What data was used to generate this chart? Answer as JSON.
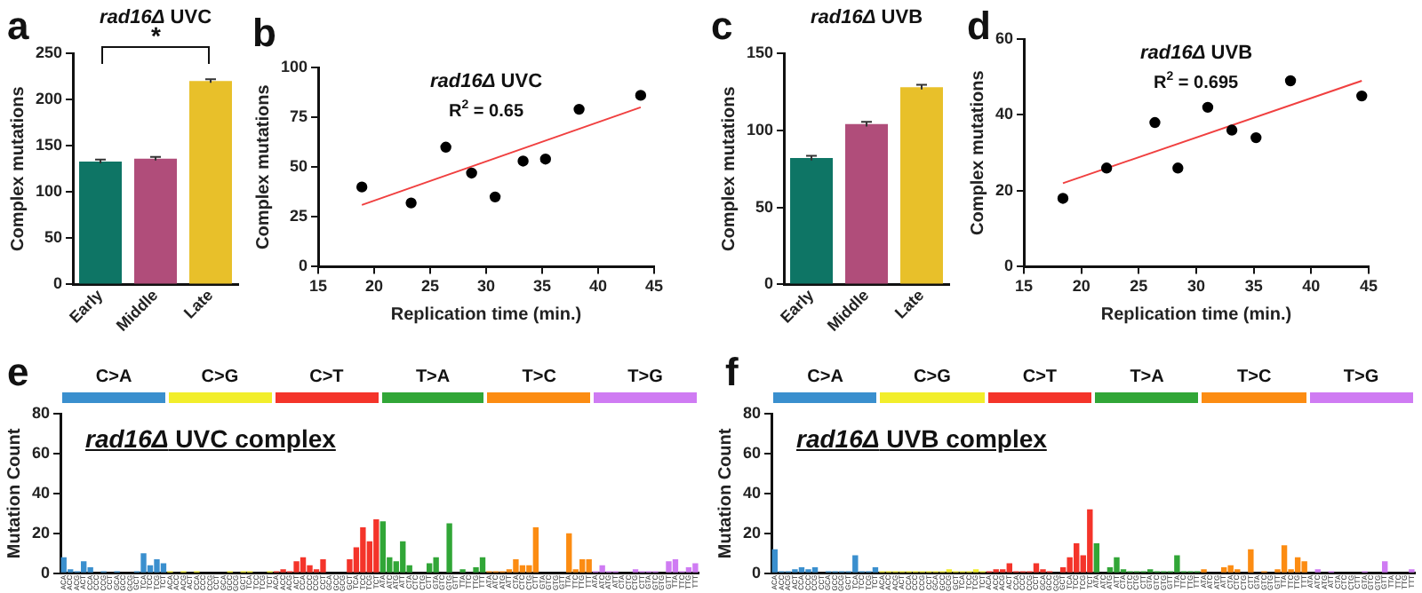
{
  "chart_data": [
    {
      "type": "bar",
      "title": "rad16Δ UVC",
      "ylabel": "Complex mutations",
      "categories": [
        "Early",
        "Middle",
        "Late"
      ],
      "values": [
        133,
        136,
        220
      ],
      "errors": [
        2,
        2,
        2
      ],
      "colors": [
        "#0e7565",
        "#b04d7a",
        "#e8c02a"
      ],
      "ylim": [
        0,
        250
      ],
      "yticks": [
        0,
        50,
        100,
        150,
        200,
        250
      ],
      "grid": false,
      "legend": false,
      "annotations": [
        "a",
        "*"
      ]
    },
    {
      "type": "scatter",
      "title": "rad16Δ UVC",
      "xlabel": "Replication time (min.)",
      "ylabel": "Complex mutations",
      "series": [
        {
          "type": "scatter",
          "marker": "circle",
          "color": "#000000",
          "x": [
            18.9,
            23.3,
            26.4,
            28.7,
            30.8,
            33.3,
            35.3,
            38.3,
            43.8
          ],
          "values": [
            40,
            32,
            60,
            47,
            35,
            53,
            54,
            79,
            86
          ]
        },
        {
          "type": "line",
          "marker": "none",
          "color": "#f04040",
          "x": [
            18.9,
            43.8
          ],
          "values": [
            31,
            80
          ]
        }
      ],
      "xlim": [
        15,
        45
      ],
      "xticks": [
        15,
        20,
        25,
        30,
        35,
        40,
        45
      ],
      "ylim": [
        0,
        100
      ],
      "yticks": [
        0,
        25,
        50,
        75,
        100
      ],
      "grid": false,
      "legend": false,
      "annotations": [
        "b",
        "R$^{2}$ = 0.65"
      ]
    },
    {
      "type": "bar",
      "title": "rad16Δ UVB",
      "ylabel": "Complex mutations",
      "categories": [
        "Early",
        "Middle",
        "Late"
      ],
      "values": [
        82,
        104,
        128
      ],
      "errors": [
        1.5,
        1.5,
        1.5
      ],
      "colors": [
        "#0e7565",
        "#b04d7a",
        "#e8c02a"
      ],
      "ylim": [
        0,
        150
      ],
      "yticks": [
        0,
        50,
        100,
        150
      ],
      "grid": false,
      "legend": false,
      "annotations": [
        "c"
      ]
    },
    {
      "type": "scatter",
      "title": "rad16Δ UVB",
      "xlabel": "Replication time (min.)",
      "ylabel": "Complex mutations",
      "series": [
        {
          "type": "scatter",
          "marker": "circle",
          "color": "#000000",
          "x": [
            18.4,
            22.2,
            26.4,
            28.4,
            31.0,
            33.1,
            35.2,
            38.2,
            44.4
          ],
          "values": [
            18,
            26,
            38,
            26,
            42,
            36,
            34,
            49,
            45
          ]
        },
        {
          "type": "line",
          "marker": "none",
          "color": "#f04040",
          "x": [
            18.4,
            44.4
          ],
          "values": [
            22,
            49
          ]
        }
      ],
      "xlim": [
        15,
        45
      ],
      "xticks": [
        15,
        20,
        25,
        30,
        35,
        40,
        45
      ],
      "ylim": [
        0,
        60
      ],
      "yticks": [
        0,
        20,
        40,
        60
      ],
      "grid": false,
      "legend": false,
      "annotations": [
        "d",
        "R$^{2}$ = 0.695"
      ]
    },
    {
      "type": "bar",
      "title": "rad16Δ UVC complex",
      "ylabel": "Mutation Count",
      "categories": [
        "ACA",
        "ACC",
        "ACG",
        "ACT",
        "CCA",
        "CCC",
        "CCG",
        "CCT",
        "GCA",
        "GCC",
        "GCG",
        "GCT",
        "TCA",
        "TCC",
        "TCG",
        "TCT",
        "ACA",
        "ACC",
        "ACG",
        "ACT",
        "CCA",
        "CCC",
        "CCG",
        "CCT",
        "GCA",
        "GCC",
        "GCG",
        "GCT",
        "TCA",
        "TCC",
        "TCG",
        "TCT",
        "ACA",
        "ACC",
        "ACG",
        "ACT",
        "CCA",
        "CCC",
        "CCG",
        "CCT",
        "GCA",
        "GCC",
        "GCG",
        "GCT",
        "TCA",
        "TCC",
        "TCG",
        "TCT",
        "ATA",
        "ATC",
        "ATG",
        "ATT",
        "CTA",
        "CTC",
        "CTG",
        "CTT",
        "GTA",
        "GTC",
        "GTG",
        "GTT",
        "TTA",
        "TTC",
        "TTG",
        "TTT",
        "ATA",
        "ATC",
        "ATG",
        "ATT",
        "CTA",
        "CTC",
        "CTG",
        "CTT",
        "GTA",
        "GTC",
        "GTG",
        "GTT",
        "TTA",
        "TTC",
        "TTG",
        "TTT",
        "ATA",
        "ATC",
        "ATG",
        "ATT",
        "CTA",
        "CTC",
        "CTG",
        "CTT",
        "GTA",
        "GTC",
        "GTG",
        "GTT",
        "TTA",
        "TTC",
        "TTG",
        "TTT"
      ],
      "values": [
        8,
        2,
        1,
        6,
        3,
        0,
        1,
        0,
        1,
        0,
        0,
        1,
        10,
        4,
        7,
        5,
        1,
        0,
        1,
        0,
        1,
        0,
        0,
        0,
        0,
        1,
        0,
        1,
        1,
        0,
        0,
        1,
        1,
        2,
        1,
        6,
        8,
        4,
        2,
        7,
        0,
        0,
        0,
        7,
        13,
        23,
        16,
        27,
        26,
        8,
        6,
        16,
        4,
        0,
        0,
        5,
        8,
        0,
        25,
        0,
        2,
        0,
        3,
        8,
        1,
        1,
        1,
        2,
        7,
        4,
        4,
        23,
        0,
        0,
        0,
        0,
        20,
        2,
        7,
        7,
        1,
        4,
        1,
        1,
        0,
        0,
        2,
        1,
        1,
        1,
        0,
        6,
        7,
        1,
        3,
        5
      ],
      "colors": [
        "#3a8fce",
        "#3a8fce",
        "#3a8fce",
        "#3a8fce",
        "#3a8fce",
        "#3a8fce",
        "#3a8fce",
        "#3a8fce",
        "#3a8fce",
        "#3a8fce",
        "#3a8fce",
        "#3a8fce",
        "#3a8fce",
        "#3a8fce",
        "#3a8fce",
        "#3a8fce",
        "#f2ee2b",
        "#f2ee2b",
        "#f2ee2b",
        "#f2ee2b",
        "#f2ee2b",
        "#f2ee2b",
        "#f2ee2b",
        "#f2ee2b",
        "#f2ee2b",
        "#f2ee2b",
        "#f2ee2b",
        "#f2ee2b",
        "#f2ee2b",
        "#f2ee2b",
        "#f2ee2b",
        "#f2ee2b",
        "#f4342a",
        "#f4342a",
        "#f4342a",
        "#f4342a",
        "#f4342a",
        "#f4342a",
        "#f4342a",
        "#f4342a",
        "#f4342a",
        "#f4342a",
        "#f4342a",
        "#f4342a",
        "#f4342a",
        "#f4342a",
        "#f4342a",
        "#f4342a",
        "#31a637",
        "#31a637",
        "#31a637",
        "#31a637",
        "#31a637",
        "#31a637",
        "#31a637",
        "#31a637",
        "#31a637",
        "#31a637",
        "#31a637",
        "#31a637",
        "#31a637",
        "#31a637",
        "#31a637",
        "#31a637",
        "#fc8c12",
        "#fc8c12",
        "#fc8c12",
        "#fc8c12",
        "#fc8c12",
        "#fc8c12",
        "#fc8c12",
        "#fc8c12",
        "#fc8c12",
        "#fc8c12",
        "#fc8c12",
        "#fc8c12",
        "#fc8c12",
        "#fc8c12",
        "#fc8c12",
        "#fc8c12",
        "#cf7bf3",
        "#cf7bf3",
        "#cf7bf3",
        "#cf7bf3",
        "#cf7bf3",
        "#cf7bf3",
        "#cf7bf3",
        "#cf7bf3",
        "#cf7bf3",
        "#cf7bf3",
        "#cf7bf3",
        "#cf7bf3",
        "#cf7bf3",
        "#cf7bf3",
        "#cf7bf3",
        "#cf7bf3"
      ],
      "ylim": [
        0,
        80
      ],
      "yticks": [
        0,
        20,
        40,
        60,
        80
      ],
      "grid": false,
      "legend": false,
      "annotations": [
        "e",
        "C>A",
        "C>G",
        "C>T",
        "T>A",
        "T>C",
        "T>G"
      ]
    },
    {
      "type": "bar",
      "title": "rad16Δ UVB complex",
      "ylabel": "Mutation Count",
      "categories": [
        "ACA",
        "ACC",
        "ACG",
        "ACT",
        "CCA",
        "CCC",
        "CCG",
        "CCT",
        "GCA",
        "GCC",
        "GCG",
        "GCT",
        "TCA",
        "TCC",
        "TCG",
        "TCT",
        "ACA",
        "ACC",
        "ACG",
        "ACT",
        "CCA",
        "CCC",
        "CCG",
        "CCT",
        "GCA",
        "GCC",
        "GCG",
        "GCT",
        "TCA",
        "TCC",
        "TCG",
        "TCT",
        "ACA",
        "ACC",
        "ACG",
        "ACT",
        "CCA",
        "CCC",
        "CCG",
        "CCT",
        "GCA",
        "GCC",
        "GCG",
        "GCT",
        "TCA",
        "TCC",
        "TCG",
        "TCT",
        "ATA",
        "ATC",
        "ATG",
        "ATT",
        "CTA",
        "CTC",
        "CTG",
        "CTT",
        "GTA",
        "GTC",
        "GTG",
        "GTT",
        "TTA",
        "TTC",
        "TTG",
        "TTT",
        "ATA",
        "ATC",
        "ATG",
        "ATT",
        "CTA",
        "CTC",
        "CTG",
        "CTT",
        "GTA",
        "GTC",
        "GTG",
        "GTT",
        "TTA",
        "TTC",
        "TTG",
        "TTT",
        "ATA",
        "ATC",
        "ATG",
        "ATT",
        "CTA",
        "CTC",
        "CTG",
        "CTT",
        "GTA",
        "GTC",
        "GTG",
        "GTT",
        "TTA",
        "TTC",
        "TTG",
        "TTT"
      ],
      "values": [
        12,
        1,
        1,
        2,
        3,
        2,
        3,
        0,
        1,
        1,
        1,
        1,
        9,
        1,
        1,
        3,
        1,
        1,
        1,
        1,
        1,
        1,
        1,
        1,
        1,
        1,
        2,
        1,
        1,
        1,
        2,
        1,
        1,
        2,
        2,
        5,
        1,
        1,
        1,
        5,
        2,
        1,
        0,
        3,
        8,
        15,
        9,
        32,
        15,
        0,
        3,
        8,
        2,
        1,
        1,
        1,
        2,
        1,
        1,
        1,
        9,
        1,
        1,
        1,
        2,
        0,
        0,
        3,
        4,
        2,
        0,
        12,
        0,
        1,
        0,
        2,
        14,
        2,
        8,
        6,
        0,
        2,
        0,
        1,
        0,
        0,
        0,
        0,
        1,
        0,
        0,
        6,
        0,
        0,
        0,
        2
      ],
      "colors": [
        "#3a8fce",
        "#3a8fce",
        "#3a8fce",
        "#3a8fce",
        "#3a8fce",
        "#3a8fce",
        "#3a8fce",
        "#3a8fce",
        "#3a8fce",
        "#3a8fce",
        "#3a8fce",
        "#3a8fce",
        "#3a8fce",
        "#3a8fce",
        "#3a8fce",
        "#3a8fce",
        "#f2ee2b",
        "#f2ee2b",
        "#f2ee2b",
        "#f2ee2b",
        "#f2ee2b",
        "#f2ee2b",
        "#f2ee2b",
        "#f2ee2b",
        "#f2ee2b",
        "#f2ee2b",
        "#f2ee2b",
        "#f2ee2b",
        "#f2ee2b",
        "#f2ee2b",
        "#f2ee2b",
        "#f2ee2b",
        "#f4342a",
        "#f4342a",
        "#f4342a",
        "#f4342a",
        "#f4342a",
        "#f4342a",
        "#f4342a",
        "#f4342a",
        "#f4342a",
        "#f4342a",
        "#f4342a",
        "#f4342a",
        "#f4342a",
        "#f4342a",
        "#f4342a",
        "#f4342a",
        "#31a637",
        "#31a637",
        "#31a637",
        "#31a637",
        "#31a637",
        "#31a637",
        "#31a637",
        "#31a637",
        "#31a637",
        "#31a637",
        "#31a637",
        "#31a637",
        "#31a637",
        "#31a637",
        "#31a637",
        "#31a637",
        "#fc8c12",
        "#fc8c12",
        "#fc8c12",
        "#fc8c12",
        "#fc8c12",
        "#fc8c12",
        "#fc8c12",
        "#fc8c12",
        "#fc8c12",
        "#fc8c12",
        "#fc8c12",
        "#fc8c12",
        "#fc8c12",
        "#fc8c12",
        "#fc8c12",
        "#fc8c12",
        "#cf7bf3",
        "#cf7bf3",
        "#cf7bf3",
        "#cf7bf3",
        "#cf7bf3",
        "#cf7bf3",
        "#cf7bf3",
        "#cf7bf3",
        "#cf7bf3",
        "#cf7bf3",
        "#cf7bf3",
        "#cf7bf3",
        "#cf7bf3",
        "#cf7bf3",
        "#cf7bf3",
        "#cf7bf3"
      ],
      "ylim": [
        0,
        80
      ],
      "yticks": [
        0,
        20,
        40,
        60,
        80
      ],
      "grid": false,
      "legend": false,
      "annotations": [
        "f",
        "C>A",
        "C>G",
        "C>T",
        "T>A",
        "T>C",
        "T>G"
      ]
    }
  ]
}
